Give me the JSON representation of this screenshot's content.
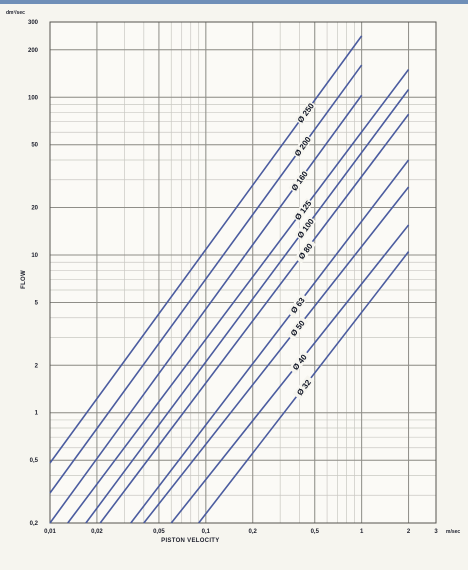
{
  "chart_data": {
    "type": "line",
    "xscale": "log",
    "yscale": "log",
    "xlim": [
      0.01,
      3
    ],
    "ylim": [
      0.2,
      300
    ],
    "xlabel": "PISTON VELOCITY",
    "ylabel": "FLOW",
    "xunit": "m/sec",
    "yunit": "dm³/sec",
    "x_ticks": [
      {
        "value": 0.01,
        "label": "0,01"
      },
      {
        "value": 0.02,
        "label": "0,02"
      },
      {
        "value": 0.05,
        "label": "0,05"
      },
      {
        "value": 0.1,
        "label": "0,1"
      },
      {
        "value": 0.2,
        "label": "0,2"
      },
      {
        "value": 0.5,
        "label": "0,5"
      },
      {
        "value": 1,
        "label": "1"
      },
      {
        "value": 2,
        "label": "2"
      },
      {
        "value": 3,
        "label": "3"
      }
    ],
    "y_ticks": [
      {
        "value": 0.2,
        "label": "0,2"
      },
      {
        "value": 0.5,
        "label": "0,5"
      },
      {
        "value": 1,
        "label": "1"
      },
      {
        "value": 2,
        "label": "2"
      },
      {
        "value": 5,
        "label": "5"
      },
      {
        "value": 10,
        "label": "10"
      },
      {
        "value": 20,
        "label": "20"
      },
      {
        "value": 50,
        "label": "50"
      },
      {
        "value": 100,
        "label": "100"
      },
      {
        "value": 200,
        "label": "200"
      },
      {
        "value": 300,
        "label": "300"
      }
    ],
    "grid": true,
    "line_color": "#4b5c9f",
    "series": [
      {
        "name": "Ø 250",
        "x": [
          0.01,
          1
        ],
        "y": [
          0.48,
          245
        ]
      },
      {
        "name": "Ø 200",
        "x": [
          0.01,
          1
        ],
        "y": [
          0.31,
          160
        ]
      },
      {
        "name": "Ø 160",
        "x": [
          0.01,
          1
        ],
        "y": [
          0.2,
          103
        ]
      },
      {
        "name": "Ø 125",
        "x": [
          0.013,
          2
        ],
        "y": [
          0.2,
          150
        ]
      },
      {
        "name": "Ø 100",
        "x": [
          0.017,
          2
        ],
        "y": [
          0.2,
          112
        ]
      },
      {
        "name": "Ø 80",
        "x": [
          0.021,
          2
        ],
        "y": [
          0.2,
          78
        ]
      },
      {
        "name": "Ø 63",
        "x": [
          0.033,
          2
        ],
        "y": [
          0.2,
          40
        ]
      },
      {
        "name": "Ø 50",
        "x": [
          0.04,
          2
        ],
        "y": [
          0.2,
          27
        ]
      },
      {
        "name": "Ø 40",
        "x": [
          0.06,
          2
        ],
        "y": [
          0.2,
          15.5
        ]
      },
      {
        "name": "Ø 32",
        "x": [
          0.09,
          2
        ],
        "y": [
          0.2,
          10.5
        ]
      }
    ]
  }
}
